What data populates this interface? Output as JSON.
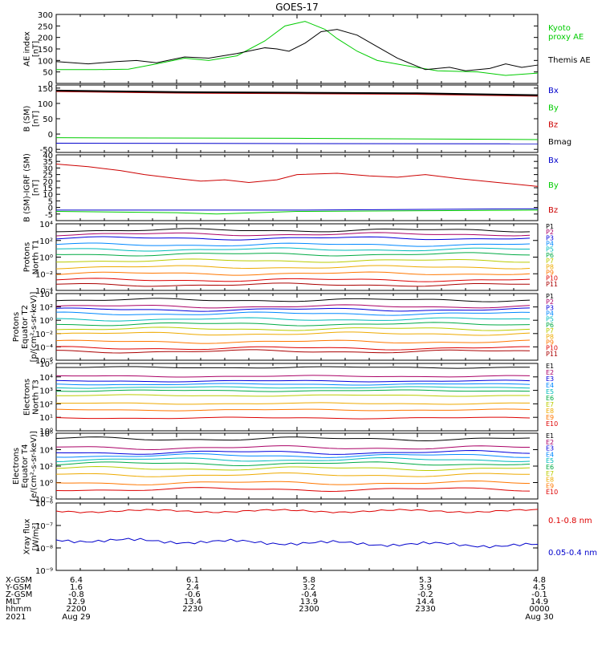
{
  "title": "GOES-17",
  "colors": {
    "frame": "#000000",
    "p_red": "#c00000",
    "p_green": "#00c000",
    "p_blue": "#0000c0",
    "p_black": "#000000"
  },
  "chart_data": [
    {
      "type": "line",
      "panel": "ae",
      "ylabel": "AE index\n[nT]",
      "ylim": [
        0,
        300
      ],
      "yticks": [
        0,
        50,
        100,
        150,
        200,
        250,
        300
      ],
      "x_note": "minutes from 2021 Aug 29 2200 UT, range 0-120",
      "series": [
        {
          "name": "Kyoto\nproxy AE",
          "color": "#00cc00",
          "x": [
            0,
            10,
            18,
            25,
            32,
            38,
            45,
            52,
            57,
            62,
            67,
            70,
            75,
            80,
            88,
            95,
            105,
            112,
            120
          ],
          "y": [
            60,
            60,
            62,
            85,
            110,
            100,
            120,
            185,
            250,
            270,
            235,
            195,
            140,
            100,
            75,
            55,
            50,
            35,
            45
          ]
        },
        {
          "name": "Themis AE",
          "color": "#000000",
          "x": [
            0,
            8,
            15,
            20,
            25,
            32,
            38,
            45,
            52,
            55,
            58,
            62,
            66,
            70,
            75,
            80,
            85,
            92,
            98,
            102,
            108,
            112,
            116,
            120
          ],
          "y": [
            95,
            85,
            95,
            100,
            90,
            115,
            110,
            130,
            155,
            150,
            140,
            175,
            225,
            235,
            210,
            160,
            110,
            60,
            70,
            55,
            65,
            85,
            70,
            80
          ]
        }
      ]
    },
    {
      "type": "line",
      "panel": "bsm",
      "ylabel": "B (SM)\n[nT]",
      "ylim": [
        -60,
        160
      ],
      "yticks": [
        -50,
        0,
        50,
        100,
        150
      ],
      "series": [
        {
          "name": "Bx",
          "color": "#0000cc",
          "x": [
            0,
            120
          ],
          "y": [
            -30,
            -32
          ]
        },
        {
          "name": "By",
          "color": "#00cc00",
          "x": [
            0,
            60,
            120
          ],
          "y": [
            -12,
            -14,
            -18
          ]
        },
        {
          "name": "Bz",
          "color": "#cc0000",
          "x": [
            0,
            30,
            60,
            90,
            120
          ],
          "y": [
            140,
            135,
            133,
            131,
            125
          ]
        },
        {
          "name": "Bmag",
          "color": "#000000",
          "x": [
            0,
            30,
            60,
            90,
            120
          ],
          "y": [
            142,
            137,
            135,
            133,
            127
          ]
        }
      ]
    },
    {
      "type": "line",
      "panel": "bigrf",
      "ylabel": "B (SM)-IGRF (SM)\n[nT]",
      "ylim": [
        -10,
        40
      ],
      "yticks": [
        -5,
        0,
        5,
        10,
        15,
        20,
        25,
        30,
        35,
        40
      ],
      "series": [
        {
          "name": "Bx",
          "color": "#0000cc",
          "x": [
            0,
            60,
            120
          ],
          "y": [
            -2,
            -2,
            -1
          ]
        },
        {
          "name": "By",
          "color": "#00cc00",
          "x": [
            0,
            30,
            40,
            60,
            120
          ],
          "y": [
            -3,
            -4,
            -5,
            -3,
            -2
          ]
        },
        {
          "name": "Bz",
          "color": "#cc0000",
          "x": [
            0,
            8,
            16,
            22,
            30,
            36,
            42,
            48,
            55,
            60,
            70,
            78,
            85,
            92,
            100,
            110,
            120
          ],
          "y": [
            33,
            31,
            28,
            25,
            22,
            20,
            21,
            19,
            21,
            25,
            26,
            24,
            23,
            25,
            22,
            19,
            16
          ]
        }
      ]
    }
  ],
  "panels": {
    "pn": {
      "ylabel": "Protons\nNorth T1",
      "ticks": [
        "10⁴",
        "10²",
        "10⁰",
        "10⁻²",
        "10⁻⁴"
      ],
      "labels": [
        "P1",
        "P2",
        "P3",
        "P4",
        "P5",
        "P6",
        "P7",
        "P8",
        "P9",
        "P10",
        "P11"
      ]
    },
    "pe": {
      "ylabel": "Protons\nEquator T2\n[p/(cm²-s-sr-keV)]",
      "ticks": [
        "10⁴",
        "10²",
        "10⁰",
        "10⁻²",
        "10⁻⁴",
        "10⁻⁶"
      ],
      "labels": [
        "P1",
        "P2",
        "P3",
        "P4",
        "P5",
        "P6",
        "P7",
        "P8",
        "P9",
        "P10",
        "P11"
      ]
    },
    "en": {
      "ylabel": "Electrons\nNorth T3",
      "ticks": [
        "10⁵",
        "10⁴",
        "10³",
        "10²",
        "10¹",
        "10⁰"
      ],
      "labels": [
        "E1",
        "E2",
        "E3",
        "E4",
        "E5",
        "E6",
        "E7",
        "E8",
        "E9",
        "E10"
      ]
    },
    "ee": {
      "ylabel": "Electrons\nEquator T4\n[e/(cm²-s-sr-keV)]",
      "ticks": [
        "10⁶",
        "10⁴",
        "10²",
        "10⁰",
        "10⁻²"
      ],
      "labels": [
        "E1",
        "E2",
        "E3",
        "E4",
        "E5",
        "E6",
        "E7",
        "E8",
        "E9",
        "E10"
      ]
    },
    "xray": {
      "ylabel": "Xray flux\n[W/m²]",
      "ticks": [
        "10⁻⁶",
        "10⁻⁷",
        "10⁻⁸",
        "10⁻⁹"
      ],
      "labels": [
        "0.1-0.8 nm",
        "0.05-0.4 nm"
      ]
    }
  },
  "xaxis": {
    "row_labels": [
      "X-GSM",
      "Y-GSM",
      "Z-GSM",
      "MLT",
      "hhmm",
      "2021"
    ],
    "columns": [
      [
        "6.4",
        "1.6",
        "-0.8",
        "12.9",
        "2200",
        "Aug 29"
      ],
      [
        "6.1",
        "2.4",
        "-0.6",
        "13.4",
        "2230",
        ""
      ],
      [
        "5.8",
        "3.2",
        "-0.4",
        "13.9",
        "2300",
        ""
      ],
      [
        "5.3",
        "3.9",
        "-0.2",
        "14.4",
        "2330",
        ""
      ],
      [
        "4.8",
        "4.5",
        "-0.1",
        "14.9",
        "0000",
        "Aug 30"
      ]
    ]
  }
}
